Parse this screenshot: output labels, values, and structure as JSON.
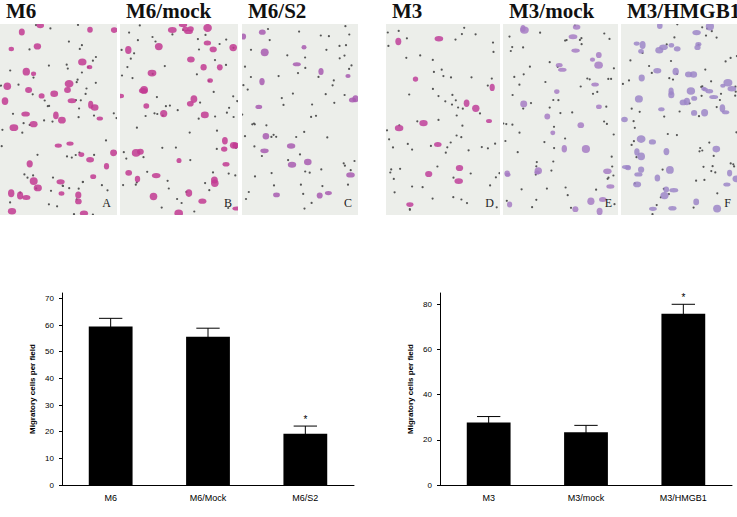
{
  "images": [
    {
      "title": "M6",
      "letter": "A"
    },
    {
      "title": "M6/mock",
      "letter": "B"
    },
    {
      "title": "M6/S2",
      "letter": "C"
    },
    {
      "title": "M3",
      "letter": "D"
    },
    {
      "title": "M3/mock",
      "letter": "E"
    },
    {
      "title": "M3/HMGB1",
      "letter": "F"
    }
  ],
  "chart_data": [
    {
      "type": "bar",
      "categories": [
        "M6",
        "M6/Mock",
        "M6/S2"
      ],
      "values": [
        59.4,
        55.6,
        19.2
      ],
      "errors": [
        3.1,
        3.2,
        2.9
      ],
      "color": "#000000",
      "ylabel": "Migratory cells per field",
      "ylim": [
        0,
        72
      ],
      "yticks": [
        0,
        10,
        20,
        30,
        40,
        50,
        60,
        70
      ],
      "grid": false,
      "annotations": [
        {
          "text": "*",
          "category": "M6/S2"
        }
      ]
    },
    {
      "type": "bar",
      "categories": [
        "M3",
        "M3/mock",
        "M3/HMGB1"
      ],
      "values": [
        27.7,
        23.4,
        75.8
      ],
      "errors": [
        2.6,
        3.0,
        4.2
      ],
      "color": "#000000",
      "ylabel": "Migratory cells per field",
      "ylim": [
        0,
        85
      ],
      "yticks": [
        0,
        20,
        40,
        60,
        80
      ],
      "grid": false,
      "annotations": [
        {
          "text": "*",
          "category": "M3/HMGB1"
        }
      ]
    }
  ]
}
